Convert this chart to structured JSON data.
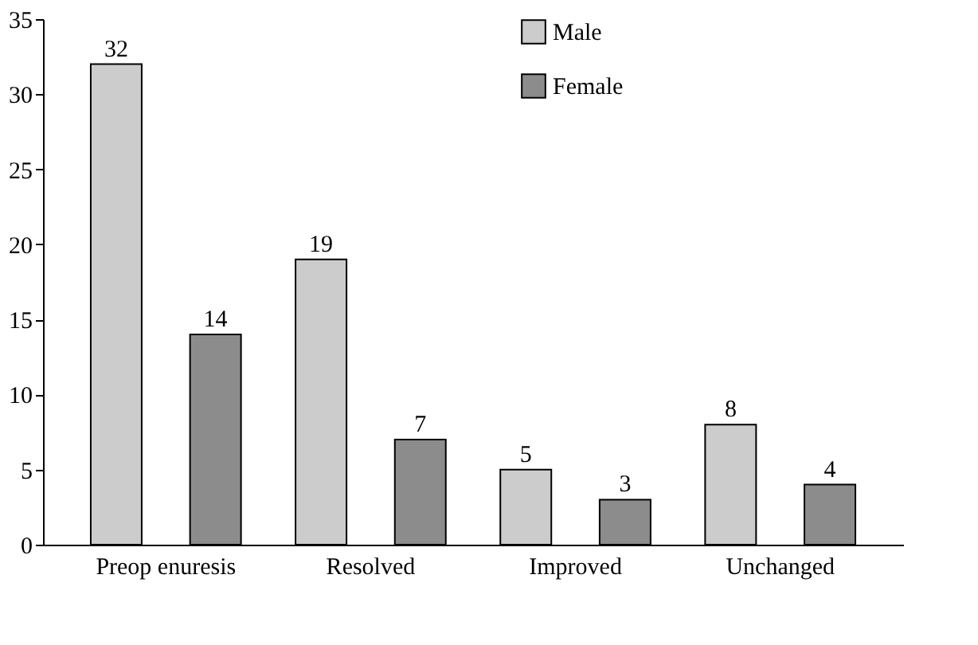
{
  "chart_data": {
    "type": "bar",
    "categories": [
      "Preop enuresis",
      "Resolved",
      "Improved",
      "Unchanged"
    ],
    "series": [
      {
        "name": "Male",
        "color": "#cccccc",
        "values": [
          32,
          19,
          5,
          8
        ]
      },
      {
        "name": "Female",
        "color": "#8c8c8c",
        "values": [
          14,
          7,
          3,
          4
        ]
      }
    ],
    "ylim": [
      0,
      35
    ],
    "yticks": [
      0,
      5,
      10,
      15,
      20,
      25,
      30,
      35
    ],
    "data_labels": true,
    "grid": false,
    "legend": "top right"
  }
}
